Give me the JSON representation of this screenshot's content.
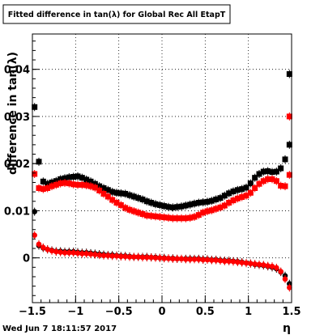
{
  "footer": {
    "timestamp": "Wed Jun  7 18:11:57 2017"
  },
  "chart_data": {
    "type": "scatter",
    "title": "Fitted difference in tan(λ) for Global Rec All EtapT",
    "xlabel": "η",
    "ylabel": "difference in tan(λ)",
    "xlim": [
      -1.5,
      1.5
    ],
    "ylim": [
      -0.0095,
      0.0475
    ],
    "grid": true,
    "x_ticks": [
      -1.5,
      -1,
      -0.5,
      0,
      0.5,
      1,
      1.5
    ],
    "x_tick_labels": [
      "−1.5",
      "−1",
      "−0.5",
      "0",
      "0.5",
      "1",
      "1.5"
    ],
    "y_ticks": [
      0,
      0.01,
      0.02,
      0.03,
      0.04
    ],
    "y_tick_labels": [
      "0",
      "0.01",
      "0.02",
      "0.03",
      "0.04"
    ],
    "x": [
      -1.475,
      -1.425,
      -1.375,
      -1.325,
      -1.275,
      -1.225,
      -1.175,
      -1.125,
      -1.075,
      -1.025,
      -0.975,
      -0.925,
      -0.875,
      -0.825,
      -0.775,
      -0.725,
      -0.675,
      -0.625,
      -0.575,
      -0.525,
      -0.475,
      -0.425,
      -0.375,
      -0.325,
      -0.275,
      -0.225,
      -0.175,
      -0.125,
      -0.075,
      -0.025,
      0.025,
      0.075,
      0.125,
      0.175,
      0.225,
      0.275,
      0.325,
      0.375,
      0.425,
      0.475,
      0.525,
      0.575,
      0.625,
      0.675,
      0.725,
      0.775,
      0.825,
      0.875,
      0.925,
      0.975,
      1.025,
      1.075,
      1.125,
      1.175,
      1.225,
      1.275,
      1.325,
      1.375,
      1.425,
      1.475
    ],
    "series": [
      {
        "color": "#000000",
        "marker": "square",
        "values": [
          0.032,
          0.0204,
          0.0162,
          0.0157,
          0.016,
          0.0163,
          0.0167,
          0.0169,
          0.0171,
          0.0172,
          0.0173,
          0.017,
          0.0166,
          0.0162,
          0.0157,
          0.0152,
          0.0148,
          0.0144,
          0.014,
          0.0138,
          0.0137,
          0.0136,
          0.0133,
          0.013,
          0.0127,
          0.0124,
          0.012,
          0.0117,
          0.0114,
          0.0112,
          0.011,
          0.0108,
          0.0107,
          0.0108,
          0.0109,
          0.0111,
          0.0113,
          0.0115,
          0.0117,
          0.0118,
          0.0119,
          0.0121,
          0.0124,
          0.0127,
          0.0132,
          0.0137,
          0.0141,
          0.0144,
          0.0146,
          0.0149,
          0.0158,
          0.017,
          0.0178,
          0.0183,
          0.0184,
          0.0182,
          0.0183,
          0.019,
          0.0209,
          0.024
        ]
      },
      {
        "color": "#ff0000",
        "marker": "square",
        "values": [
          0.0178,
          0.0148,
          0.0146,
          0.0148,
          0.0152,
          0.0155,
          0.0158,
          0.0159,
          0.0158,
          0.0156,
          0.0155,
          0.0155,
          0.0154,
          0.0152,
          0.0149,
          0.0143,
          0.0136,
          0.013,
          0.0123,
          0.0117,
          0.0112,
          0.0106,
          0.0102,
          0.0099,
          0.0096,
          0.0093,
          0.009,
          0.0089,
          0.0088,
          0.0087,
          0.0086,
          0.0085,
          0.0084,
          0.0084,
          0.0084,
          0.0084,
          0.0085,
          0.0087,
          0.0091,
          0.0096,
          0.0099,
          0.0101,
          0.0104,
          0.0107,
          0.0111,
          0.0117,
          0.0122,
          0.0126,
          0.0129,
          0.0132,
          0.0138,
          0.0148,
          0.0157,
          0.0163,
          0.0167,
          0.0167,
          0.0163,
          0.0153,
          0.0152,
          0.0176
        ]
      },
      {
        "color": "#000000",
        "marker": "circle",
        "values": [
          0.0098,
          0.0026,
          0.0021,
          0.0018,
          0.0016,
          0.0014,
          0.0014,
          0.0013,
          0.0013,
          0.0013,
          0.0012,
          0.0011,
          0.0011,
          0.001,
          0.0009,
          0.0008,
          0.0007,
          0.0006,
          0.0006,
          0.0005,
          0.0004,
          0.0004,
          0.0003,
          0.0002,
          0.0002,
          0.0002,
          0.0002,
          0.0001,
          0.0001,
          0.0,
          0.0,
          -0.0001,
          -0.0001,
          -0.0002,
          -0.0002,
          -0.0002,
          -0.0002,
          -0.0002,
          -0.0002,
          -0.0003,
          -0.0003,
          -0.0004,
          -0.0004,
          -0.0005,
          -0.0006,
          -0.0006,
          -0.0007,
          -0.0008,
          -0.0009,
          -0.0011,
          -0.0012,
          -0.0014,
          -0.0015,
          -0.0016,
          -0.0018,
          -0.002,
          -0.0023,
          -0.003,
          -0.0038,
          -0.0055
        ]
      },
      {
        "color": "#ff0000",
        "marker": "circle",
        "values": [
          0.0048,
          0.0029,
          0.0022,
          0.0018,
          0.0015,
          0.0013,
          0.0012,
          0.0011,
          0.0011,
          0.0011,
          0.001,
          0.0009,
          0.0009,
          0.0008,
          0.0007,
          0.0006,
          0.0005,
          0.0005,
          0.0004,
          0.0004,
          0.0003,
          0.0003,
          0.0002,
          0.0002,
          0.0002,
          0.0001,
          0.0001,
          0.0001,
          0.0,
          0.0,
          -0.0001,
          -0.0001,
          -0.0002,
          -0.0002,
          -0.0002,
          -0.0003,
          -0.0003,
          -0.0003,
          -0.0003,
          -0.0004,
          -0.0004,
          -0.0005,
          -0.0005,
          -0.0006,
          -0.0007,
          -0.0007,
          -0.0008,
          -0.0009,
          -0.001,
          -0.0011,
          -0.0012,
          -0.0013,
          -0.0014,
          -0.0015,
          -0.0017,
          -0.0018,
          -0.0021,
          -0.0029,
          -0.0045,
          -0.0063
        ]
      }
    ],
    "extra_points": [
      {
        "x": 1.475,
        "y": 0.039,
        "color": "#000000",
        "marker": "square"
      },
      {
        "x": 1.475,
        "y": 0.03,
        "color": "#ff0000",
        "marker": "square"
      }
    ]
  }
}
